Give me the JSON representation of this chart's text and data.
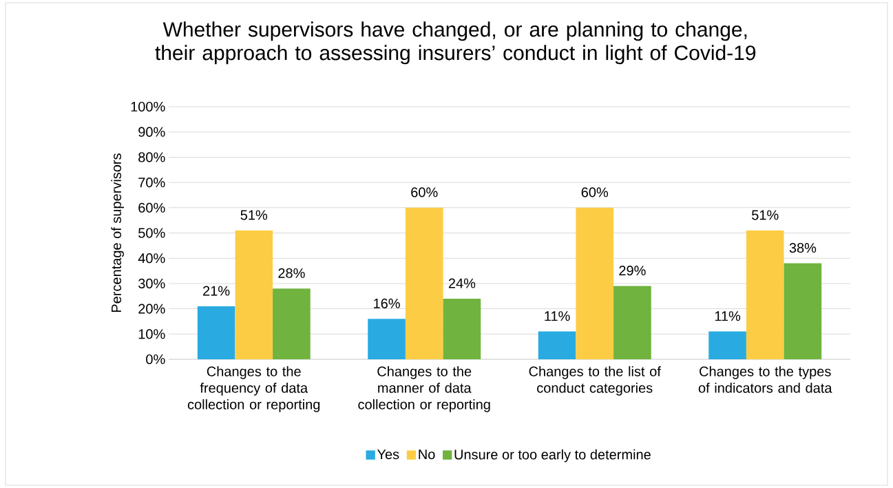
{
  "chart_data": {
    "type": "bar",
    "title": "Whether supervisors have changed, or are planning to change, their approach to assessing insurers’ conduct in light of Covid-19",
    "ylabel": "Percentage of supervisors",
    "categories": [
      "Changes to the frequency of data collection or reporting",
      "Changes to the manner of data collection or reporting",
      "Changes to the list of conduct categories",
      "Changes to the types of indicators and data"
    ],
    "series": [
      {
        "name": "Yes",
        "color": "#29abe2",
        "values": [
          21,
          16,
          11,
          11
        ],
        "value_labels": [
          "21%",
          "16%",
          "11%",
          "11%"
        ]
      },
      {
        "name": "No",
        "color": "#fccd44",
        "values": [
          51,
          60,
          60,
          51
        ],
        "value_labels": [
          "51%",
          "60%",
          "60%",
          "51%"
        ]
      },
      {
        "name": "Unsure or too early to determine",
        "color": "#70b33f",
        "values": [
          28,
          24,
          29,
          38
        ],
        "value_labels": [
          "28%",
          "24%",
          "29%",
          "38%"
        ]
      }
    ],
    "ylim": [
      0,
      100
    ],
    "yticks": [
      {
        "value": 0,
        "label": "0%"
      },
      {
        "value": 10,
        "label": "10%"
      },
      {
        "value": 20,
        "label": "20%"
      },
      {
        "value": 30,
        "label": "30%"
      },
      {
        "value": 40,
        "label": "40%"
      },
      {
        "value": 50,
        "label": "50%"
      },
      {
        "value": 60,
        "label": "60%"
      },
      {
        "value": 70,
        "label": "70%"
      },
      {
        "value": 80,
        "label": "80%"
      },
      {
        "value": 90,
        "label": "90%"
      },
      {
        "value": 100,
        "label": "100%"
      }
    ],
    "grid": "y",
    "legend": "bottom"
  }
}
